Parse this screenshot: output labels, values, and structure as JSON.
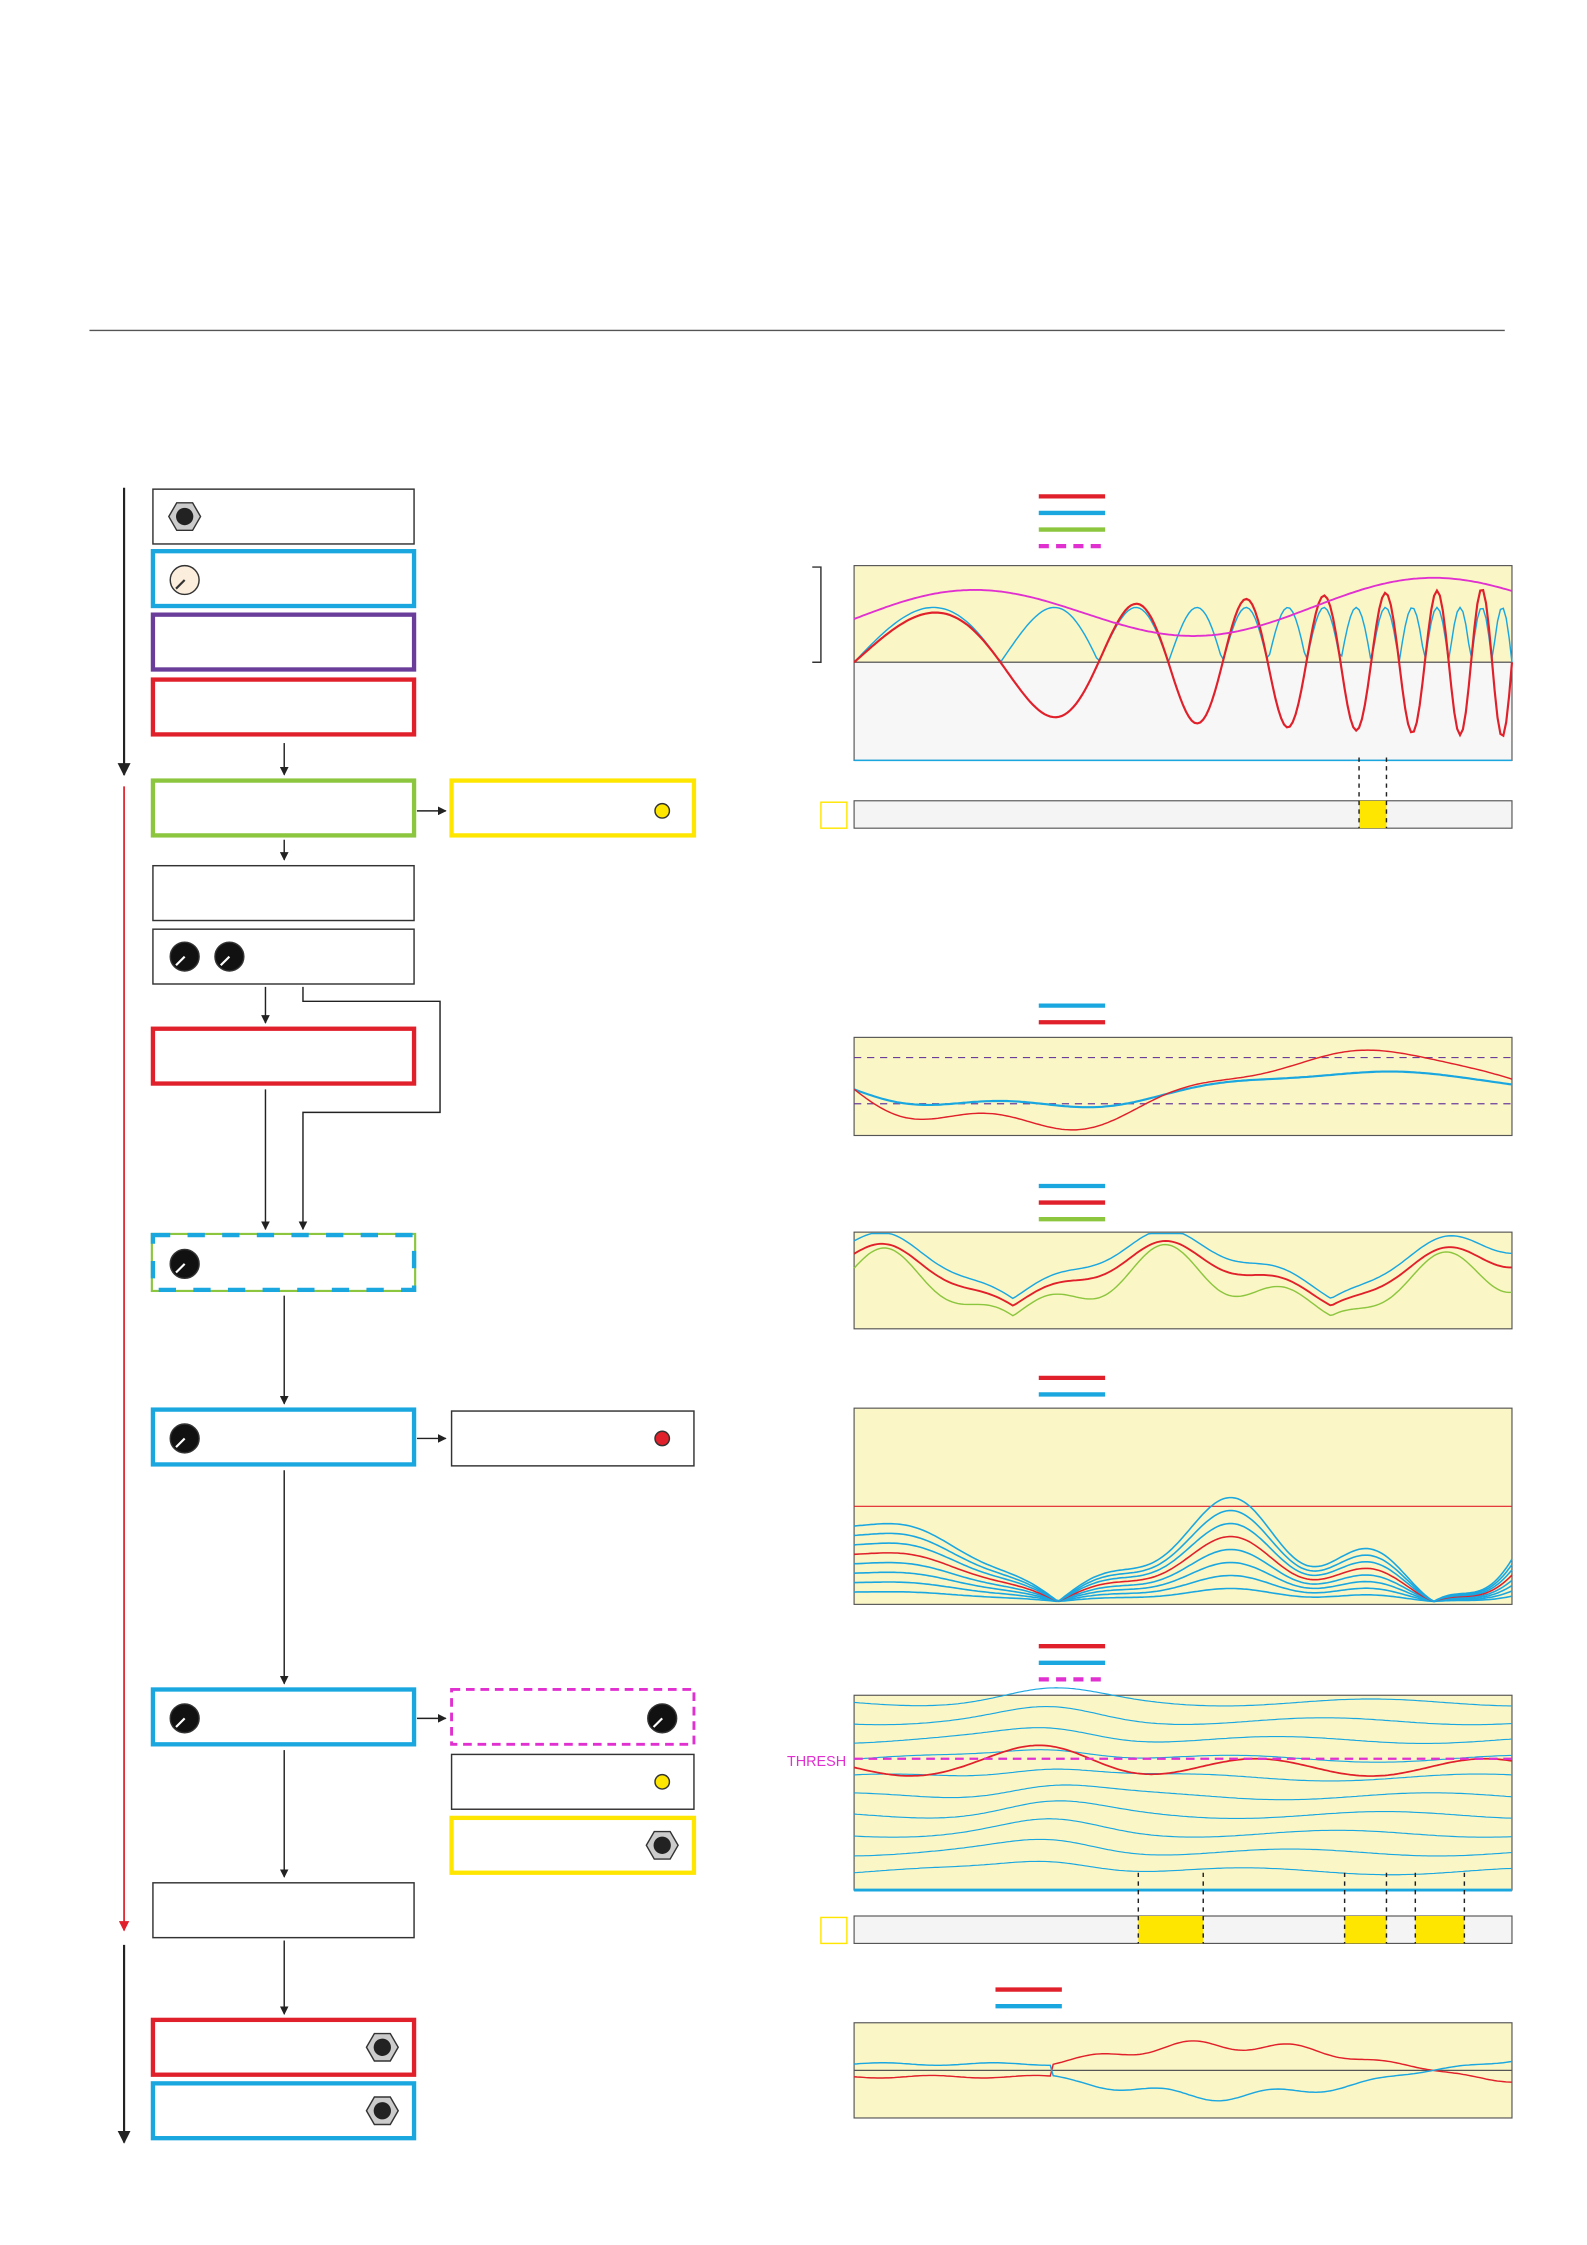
{
  "chart": {
    "threshold_label": "THRESH"
  }
}
